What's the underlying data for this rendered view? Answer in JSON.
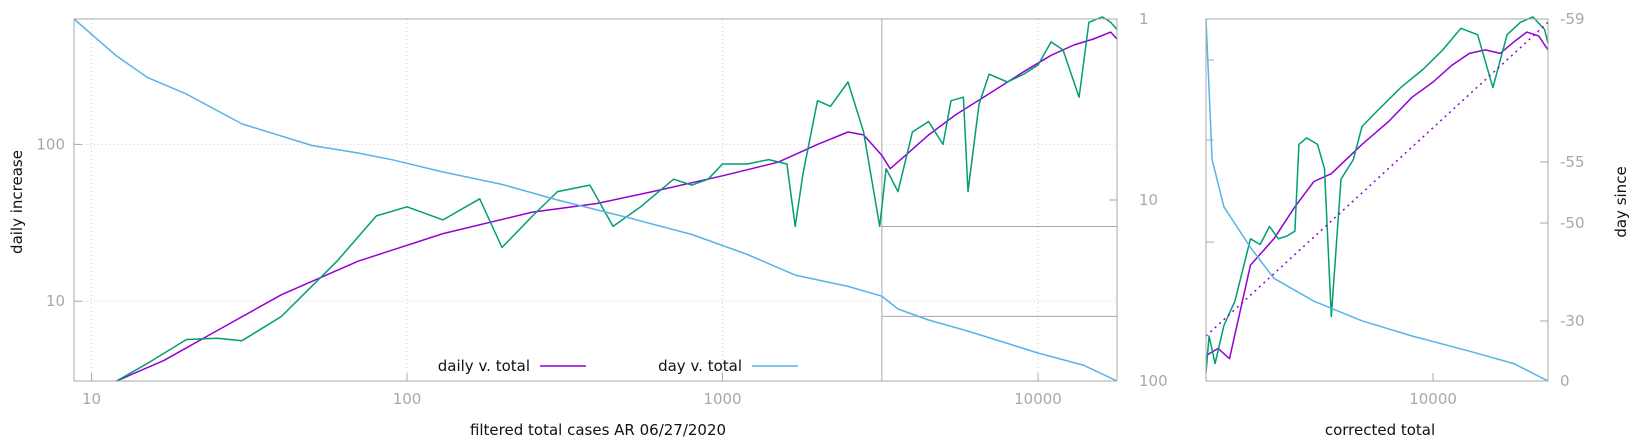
{
  "colors": {
    "daily_fit": "#9400d3",
    "daily_raw": "#009e73",
    "day": "#56b4e9",
    "frame": "#a8a8a8",
    "grid": "#cfcfcf",
    "ref": "#a8a8a8"
  },
  "chart_data": [
    {
      "type": "line",
      "xlabel": "filtered total cases AR 06/27/2020",
      "ylabel": "daily increase",
      "y2label": "",
      "x_scale": "log",
      "y_scale": "log",
      "y2_scale": "log-reversed",
      "xlim": [
        8.8,
        17800
      ],
      "ylim": [
        3.1,
        630
      ],
      "y2lim": [
        1,
        100
      ],
      "x_ticks": [
        {
          "value": 10,
          "label": "10"
        },
        {
          "value": 100,
          "label": "100"
        },
        {
          "value": 1000,
          "label": "1000"
        },
        {
          "value": 10000,
          "label": "10000"
        }
      ],
      "y_ticks": [
        {
          "value": 10,
          "label": "10"
        },
        {
          "value": 100,
          "label": "100"
        }
      ],
      "y2_ticks": [
        {
          "value": 1,
          "label": "1"
        },
        {
          "value": 10,
          "label": "10"
        },
        {
          "value": 100,
          "label": "100"
        }
      ],
      "grid": true,
      "legend": {
        "placement": "bottom-center",
        "entries": [
          {
            "label": "daily v. total",
            "series": "daily_fit"
          },
          {
            "label": "day v. total",
            "series": "day"
          }
        ]
      },
      "reference_lines": {
        "x": 3200,
        "y": 8,
        "y2": 14
      },
      "series": [
        {
          "id": "daily_fit",
          "name": "daily v. total",
          "axis": "y",
          "points": [
            [
              12,
              3.1
            ],
            [
              17,
              4.2
            ],
            [
              25,
              6.5
            ],
            [
              40,
              11
            ],
            [
              70,
              18
            ],
            [
              130,
              27
            ],
            [
              250,
              37
            ],
            [
              400,
              42
            ],
            [
              600,
              50
            ],
            [
              1000,
              63
            ],
            [
              1500,
              77
            ],
            [
              2000,
              100
            ],
            [
              2500,
              120
            ],
            [
              2800,
              115
            ],
            [
              3200,
              85
            ],
            [
              3400,
              70
            ],
            [
              3800,
              85
            ],
            [
              4500,
              115
            ],
            [
              5500,
              155
            ],
            [
              7000,
              210
            ],
            [
              9000,
              290
            ],
            [
              11000,
              370
            ],
            [
              13000,
              430
            ],
            [
              15000,
              470
            ],
            [
              17000,
              520
            ],
            [
              17800,
              470
            ]
          ]
        },
        {
          "id": "daily_raw",
          "axis": "y",
          "points": [
            [
              12,
              3.1
            ],
            [
              15,
              4
            ],
            [
              20,
              5.7
            ],
            [
              25,
              5.8
            ],
            [
              30,
              5.6
            ],
            [
              40,
              8
            ],
            [
              60,
              18
            ],
            [
              80,
              35
            ],
            [
              100,
              40
            ],
            [
              130,
              33
            ],
            [
              170,
              45
            ],
            [
              200,
              22
            ],
            [
              250,
              35
            ],
            [
              300,
              50
            ],
            [
              380,
              55
            ],
            [
              450,
              30
            ],
            [
              550,
              40
            ],
            [
              700,
              60
            ],
            [
              800,
              55
            ],
            [
              900,
              60
            ],
            [
              1000,
              75
            ],
            [
              1200,
              75
            ],
            [
              1400,
              80
            ],
            [
              1600,
              75
            ],
            [
              1700,
              30
            ],
            [
              1800,
              65
            ],
            [
              2000,
              190
            ],
            [
              2200,
              175
            ],
            [
              2500,
              250
            ],
            [
              2800,
              120
            ],
            [
              3150,
              30
            ],
            [
              3300,
              70
            ],
            [
              3600,
              50
            ],
            [
              4000,
              120
            ],
            [
              4500,
              140
            ],
            [
              5000,
              100
            ],
            [
              5300,
              190
            ],
            [
              5800,
              200
            ],
            [
              6000,
              50
            ],
            [
              6500,
              180
            ],
            [
              7000,
              280
            ],
            [
              8000,
              250
            ],
            [
              9000,
              280
            ],
            [
              10000,
              320
            ],
            [
              11000,
              450
            ],
            [
              12000,
              400
            ],
            [
              13500,
              200
            ],
            [
              14500,
              600
            ],
            [
              16000,
              650
            ],
            [
              17000,
              600
            ],
            [
              17800,
              540
            ]
          ]
        },
        {
          "id": "day",
          "name": "day v. total",
          "axis": "y2",
          "points": [
            [
              8.8,
              1
            ],
            [
              12,
              1.6
            ],
            [
              15,
              2.1
            ],
            [
              20,
              2.6
            ],
            [
              30,
              3.8
            ],
            [
              50,
              5
            ],
            [
              70,
              5.5
            ],
            [
              90,
              6
            ],
            [
              130,
              7
            ],
            [
              200,
              8.2
            ],
            [
              300,
              10
            ],
            [
              500,
              12.5
            ],
            [
              800,
              15.5
            ],
            [
              1200,
              20
            ],
            [
              1700,
              26
            ],
            [
              2500,
              30
            ],
            [
              3200,
              34
            ],
            [
              3600,
              40
            ],
            [
              4500,
              46
            ],
            [
              6000,
              53
            ],
            [
              8000,
              62
            ],
            [
              10000,
              70
            ],
            [
              14000,
              82
            ],
            [
              17800,
              100
            ]
          ]
        }
      ]
    },
    {
      "type": "line",
      "xlabel": "corrected total",
      "ylabel": "",
      "y2label": "day since",
      "x_scale": "log",
      "y_scale": "log",
      "xlim": [
        3200,
        17800
      ],
      "ylim": [
        3.1,
        630
      ],
      "y2lim": [
        0,
        -59
      ],
      "x_ticks": [
        {
          "value": 10000,
          "label": "10000"
        }
      ],
      "y2_ticks": [
        {
          "value": -59,
          "label": "-59"
        },
        {
          "value": -55,
          "label": "-55"
        },
        {
          "value": -50,
          "label": "-50"
        },
        {
          "value": -30,
          "label": "-30"
        },
        {
          "value": 0,
          "label": "0"
        }
      ],
      "grid": false,
      "series": [
        {
          "id": "daily_fit",
          "axis": "y",
          "points": [
            [
              3200,
              4.5
            ],
            [
              3400,
              5
            ],
            [
              3600,
              4.3
            ],
            [
              4000,
              17
            ],
            [
              4500,
              25
            ],
            [
              5000,
              40
            ],
            [
              5500,
              58
            ],
            [
              6000,
              65
            ],
            [
              7000,
              100
            ],
            [
              8000,
              140
            ],
            [
              9000,
              200
            ],
            [
              10000,
              250
            ],
            [
              11000,
              320
            ],
            [
              12000,
              380
            ],
            [
              13000,
              400
            ],
            [
              14000,
              380
            ],
            [
              15000,
              450
            ],
            [
              16000,
              520
            ],
            [
              17000,
              490
            ],
            [
              17800,
              400
            ]
          ]
        },
        {
          "id": "daily_raw",
          "axis": "y",
          "points": [
            [
              3200,
              3.5
            ],
            [
              3250,
              6
            ],
            [
              3350,
              4
            ],
            [
              3500,
              7
            ],
            [
              3700,
              10
            ],
            [
              4000,
              25
            ],
            [
              4200,
              23
            ],
            [
              4400,
              30
            ],
            [
              4600,
              25
            ],
            [
              4800,
              26
            ],
            [
              5000,
              28
            ],
            [
              5100,
              100
            ],
            [
              5300,
              110
            ],
            [
              5600,
              100
            ],
            [
              5800,
              70
            ],
            [
              6000,
              8
            ],
            [
              6300,
              60
            ],
            [
              6700,
              80
            ],
            [
              7000,
              130
            ],
            [
              7500,
              160
            ],
            [
              8500,
              230
            ],
            [
              9500,
              300
            ],
            [
              10500,
              400
            ],
            [
              11500,
              550
            ],
            [
              12500,
              500
            ],
            [
              13500,
              230
            ],
            [
              14500,
              500
            ],
            [
              15500,
              600
            ],
            [
              16500,
              650
            ],
            [
              17500,
              540
            ],
            [
              17800,
              440
            ]
          ]
        },
        {
          "id": "day",
          "axis": "y",
          "points": [
            [
              3200,
              630
            ],
            [
              3300,
              80
            ],
            [
              3500,
              40
            ],
            [
              4000,
              22
            ],
            [
              4500,
              14
            ],
            [
              5500,
              10
            ],
            [
              7000,
              7.5
            ],
            [
              9000,
              6
            ],
            [
              12000,
              4.8
            ],
            [
              15000,
              4
            ],
            [
              17800,
              3.1
            ]
          ]
        },
        {
          "id": "trend",
          "axis": "y",
          "points": [
            [
              3200,
              6
            ],
            [
              17800,
              600
            ]
          ]
        }
      ]
    }
  ]
}
